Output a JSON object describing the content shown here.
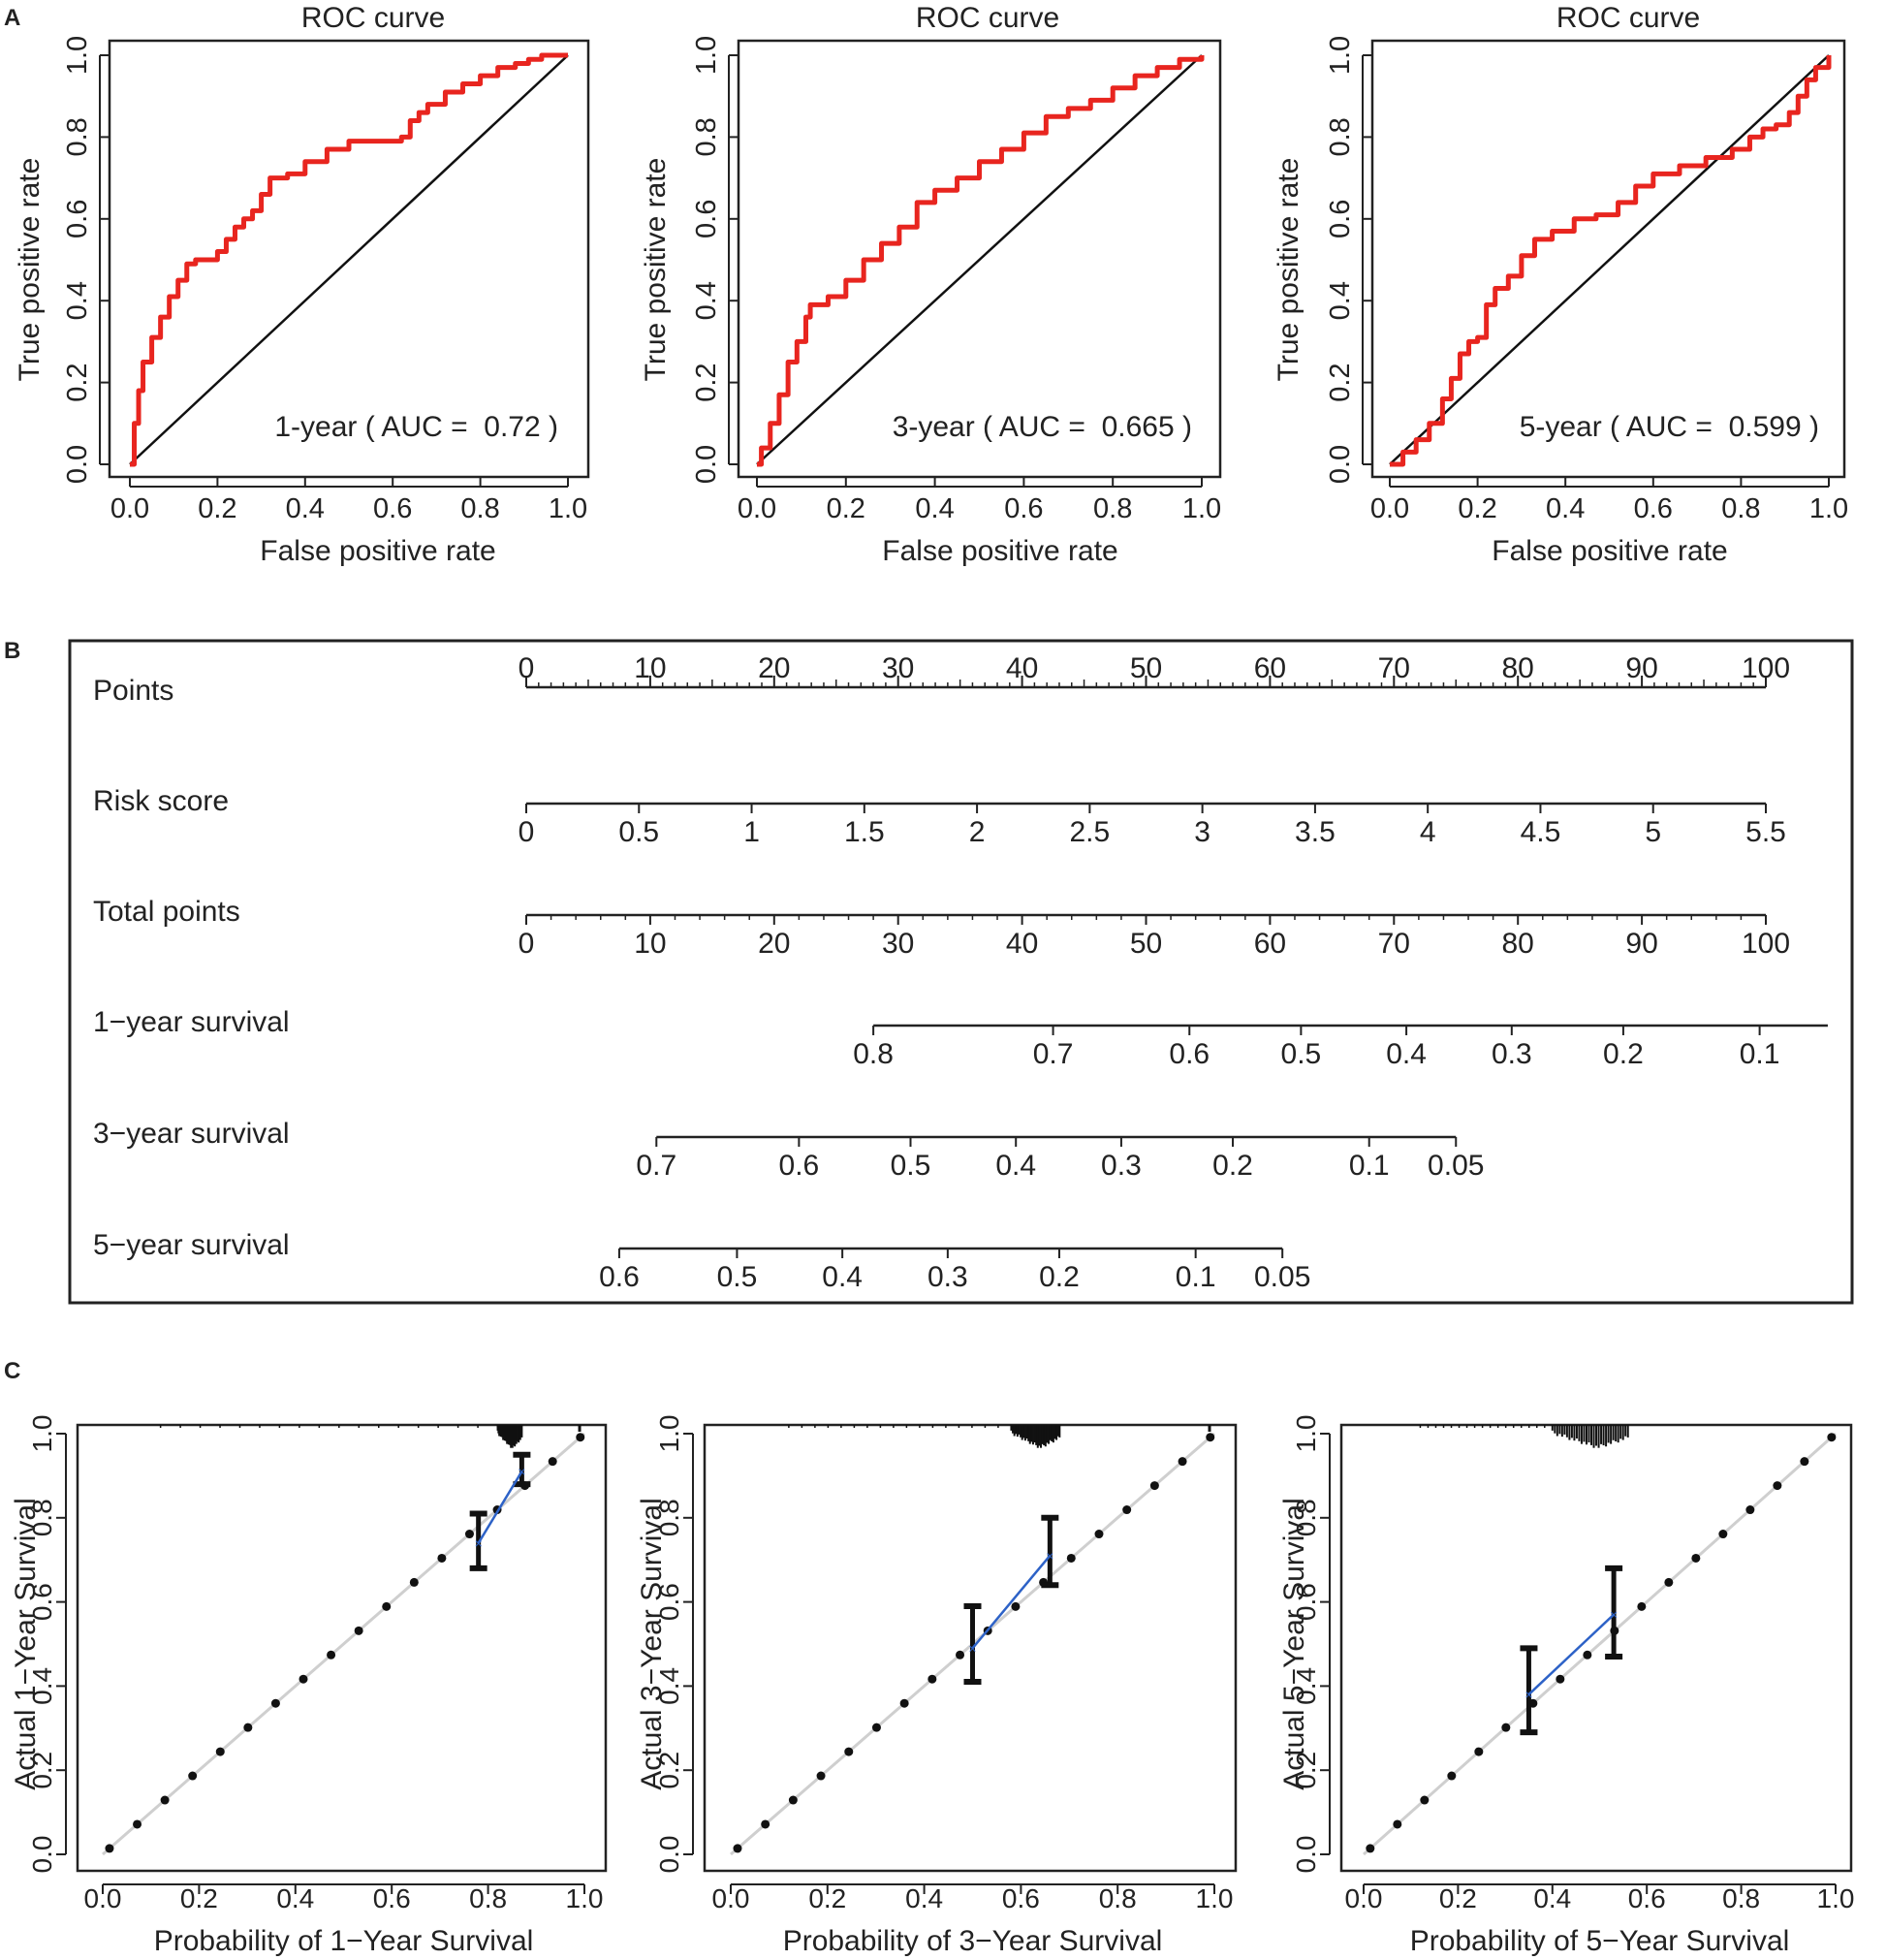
{
  "panels": {
    "A": "A",
    "B": "B",
    "C": "C"
  },
  "chart_data": [
    {
      "type": "line",
      "id": "roc-1",
      "title": "ROC curve",
      "xlabel": "False positive rate",
      "ylabel": "True positive rate",
      "xlim": [
        0,
        1
      ],
      "ylim": [
        0,
        1
      ],
      "ticks": [
        "0.0",
        "0.2",
        "0.4",
        "0.6",
        "0.8",
        "1.0"
      ],
      "annotation": "1-year ( AUC =  0.72 )",
      "auc": 0.72,
      "color": "#e8251f",
      "series": [
        {
          "name": "1-year",
          "x": [
            0,
            0.01,
            0.02,
            0.03,
            0.05,
            0.07,
            0.09,
            0.11,
            0.13,
            0.15,
            0.18,
            0.2,
            0.22,
            0.24,
            0.26,
            0.28,
            0.3,
            0.32,
            0.36,
            0.4,
            0.45,
            0.5,
            0.55,
            0.6,
            0.62,
            0.64,
            0.66,
            0.68,
            0.72,
            0.76,
            0.8,
            0.84,
            0.88,
            0.91,
            0.94,
            0.97,
            1.0
          ],
          "y": [
            0,
            0.1,
            0.18,
            0.25,
            0.31,
            0.36,
            0.41,
            0.45,
            0.49,
            0.5,
            0.5,
            0.52,
            0.55,
            0.58,
            0.6,
            0.62,
            0.66,
            0.7,
            0.71,
            0.74,
            0.77,
            0.79,
            0.79,
            0.79,
            0.8,
            0.84,
            0.86,
            0.88,
            0.91,
            0.93,
            0.95,
            0.97,
            0.98,
            0.99,
            1.0,
            1.0,
            1.0
          ]
        }
      ]
    },
    {
      "type": "line",
      "id": "roc-3",
      "title": "ROC curve",
      "xlabel": "False positive rate",
      "ylabel": "True positive rate",
      "xlim": [
        0,
        1
      ],
      "ylim": [
        0,
        1
      ],
      "ticks": [
        "0.0",
        "0.2",
        "0.4",
        "0.6",
        "0.8",
        "1.0"
      ],
      "annotation": "3-year ( AUC =  0.665 )",
      "auc": 0.665,
      "color": "#e8251f",
      "series": [
        {
          "name": "3-year",
          "x": [
            0,
            0.01,
            0.03,
            0.05,
            0.07,
            0.09,
            0.11,
            0.12,
            0.13,
            0.16,
            0.2,
            0.24,
            0.28,
            0.32,
            0.36,
            0.4,
            0.45,
            0.5,
            0.55,
            0.6,
            0.65,
            0.7,
            0.75,
            0.8,
            0.85,
            0.9,
            0.95,
            1.0
          ],
          "y": [
            0,
            0.04,
            0.1,
            0.17,
            0.25,
            0.3,
            0.36,
            0.39,
            0.39,
            0.41,
            0.45,
            0.5,
            0.54,
            0.58,
            0.64,
            0.67,
            0.7,
            0.74,
            0.77,
            0.81,
            0.85,
            0.87,
            0.89,
            0.92,
            0.95,
            0.97,
            0.99,
            1.0
          ]
        }
      ]
    },
    {
      "type": "line",
      "id": "roc-5",
      "title": "ROC curve",
      "xlabel": "False positive rate",
      "ylabel": "True positive rate",
      "xlim": [
        0,
        1
      ],
      "ylim": [
        0,
        1
      ],
      "ticks": [
        "0.0",
        "0.2",
        "0.4",
        "0.6",
        "0.8",
        "1.0"
      ],
      "annotation": "5-year ( AUC =  0.599 )",
      "auc": 0.599,
      "color": "#e8251f",
      "series": [
        {
          "name": "5-year",
          "x": [
            0,
            0.03,
            0.06,
            0.09,
            0.12,
            0.14,
            0.16,
            0.18,
            0.2,
            0.22,
            0.24,
            0.27,
            0.3,
            0.33,
            0.37,
            0.42,
            0.47,
            0.52,
            0.56,
            0.6,
            0.66,
            0.72,
            0.78,
            0.82,
            0.85,
            0.88,
            0.91,
            0.93,
            0.95,
            0.97,
            1.0
          ],
          "y": [
            0,
            0.03,
            0.06,
            0.1,
            0.16,
            0.21,
            0.27,
            0.3,
            0.31,
            0.39,
            0.43,
            0.46,
            0.51,
            0.55,
            0.57,
            0.6,
            0.61,
            0.64,
            0.68,
            0.71,
            0.73,
            0.75,
            0.77,
            0.8,
            0.82,
            0.83,
            0.86,
            0.9,
            0.94,
            0.97,
            1.0
          ]
        }
      ]
    },
    {
      "type": "nomogram",
      "id": "nomogram",
      "points_scale": {
        "label": "Points",
        "range": [
          0,
          100
        ],
        "ticks": [
          0,
          10,
          20,
          30,
          40,
          50,
          60,
          70,
          80,
          90,
          100
        ]
      },
      "rows": [
        {
          "label": "Risk score",
          "min": 0,
          "max": 5.5,
          "ticks": [
            {
              "label": "0",
              "v": 0
            },
            {
              "label": "0.5",
              "v": 0.5
            },
            {
              "label": "1",
              "v": 1
            },
            {
              "label": "1.5",
              "v": 1.5
            },
            {
              "label": "2",
              "v": 2
            },
            {
              "label": "2.5",
              "v": 2.5
            },
            {
              "label": "3",
              "v": 3
            },
            {
              "label": "3.5",
              "v": 3.5
            },
            {
              "label": "4",
              "v": 4
            },
            {
              "label": "4.5",
              "v": 4.5
            },
            {
              "label": "5",
              "v": 5
            },
            {
              "label": "5.5",
              "v": 5.5
            }
          ]
        },
        {
          "label": "Total points",
          "min": 0,
          "max": 100,
          "ticks": [
            {
              "label": "0",
              "v": 0
            },
            {
              "label": "10",
              "v": 10
            },
            {
              "label": "20",
              "v": 20
            },
            {
              "label": "30",
              "v": 30
            },
            {
              "label": "40",
              "v": 40
            },
            {
              "label": "50",
              "v": 50
            },
            {
              "label": "60",
              "v": 60
            },
            {
              "label": "70",
              "v": 70
            },
            {
              "label": "80",
              "v": 80
            },
            {
              "label": "90",
              "v": 90
            },
            {
              "label": "100",
              "v": 100
            }
          ]
        },
        {
          "label": "1−year survival",
          "line": [
            28,
            105
          ],
          "ticks": [
            {
              "label": "0.8",
              "v": 28
            },
            {
              "label": "0.7",
              "v": 42.5
            },
            {
              "label": "0.6",
              "v": 53.5
            },
            {
              "label": "0.5",
              "v": 62.5
            },
            {
              "label": "0.4",
              "v": 71
            },
            {
              "label": "0.3",
              "v": 79.5
            },
            {
              "label": "0.2",
              "v": 88.5
            },
            {
              "label": "0.1",
              "v": 99.5
            }
          ]
        },
        {
          "label": "3−year survival",
          "line": [
            10.5,
            75
          ],
          "ticks": [
            {
              "label": "0.7",
              "v": 10.5
            },
            {
              "label": "0.6",
              "v": 22
            },
            {
              "label": "0.5",
              "v": 31
            },
            {
              "label": "0.4",
              "v": 39.5
            },
            {
              "label": "0.3",
              "v": 48
            },
            {
              "label": "0.2",
              "v": 57
            },
            {
              "label": "0.1",
              "v": 68
            },
            {
              "label": "0.05",
              "v": 75
            }
          ]
        },
        {
          "label": "5−year survival",
          "line": [
            7.5,
            61
          ],
          "ticks": [
            {
              "label": "0.6",
              "v": 7.5
            },
            {
              "label": "0.5",
              "v": 17
            },
            {
              "label": "0.4",
              "v": 25.5
            },
            {
              "label": "0.3",
              "v": 34
            },
            {
              "label": "0.2",
              "v": 43
            },
            {
              "label": "0.1",
              "v": 54
            },
            {
              "label": "0.05",
              "v": 61
            }
          ]
        }
      ]
    },
    {
      "type": "scatter",
      "id": "cal-1",
      "xlabel": "Probability of 1−Year Survival",
      "ylabel": "Actual 1−Year Survival",
      "xlim": [
        0,
        1
      ],
      "ylim": [
        0,
        1
      ],
      "ticks": [
        "0.0",
        "0.2",
        "0.4",
        "0.6",
        "0.8",
        "1.0"
      ],
      "points": [
        {
          "x": 0.78,
          "y": 0.74,
          "lo": 0.68,
          "hi": 0.81
        },
        {
          "x": 0.87,
          "y": 0.91,
          "lo": 0.88,
          "hi": 0.95
        }
      ],
      "line_color": "#2d62c7",
      "rug_min": 0.82,
      "rug_max": 0.87,
      "edge_rug": 0.99
    },
    {
      "type": "scatter",
      "id": "cal-3",
      "xlabel": "Probability of 3−Year Survival",
      "ylabel": "Actual 3−Year Survival",
      "xlim": [
        0,
        1
      ],
      "ylim": [
        0,
        1
      ],
      "ticks": [
        "0.0",
        "0.2",
        "0.4",
        "0.6",
        "0.8",
        "1.0"
      ],
      "points": [
        {
          "x": 0.5,
          "y": 0.49,
          "lo": 0.41,
          "hi": 0.59
        },
        {
          "x": 0.66,
          "y": 0.71,
          "lo": 0.64,
          "hi": 0.8
        }
      ],
      "line_color": "#2d62c7",
      "rug_min": 0.58,
      "rug_max": 0.68,
      "edge_rug": 0.99
    },
    {
      "type": "scatter",
      "id": "cal-5",
      "xlabel": "Probability of 5−Year Survival",
      "ylabel": "Actual 5−Year Survival",
      "xlim": [
        0,
        1
      ],
      "ylim": [
        0,
        1
      ],
      "ticks": [
        "0.0",
        "0.2",
        "0.4",
        "0.6",
        "0.8",
        "1.0"
      ],
      "points": [
        {
          "x": 0.35,
          "y": 0.38,
          "lo": 0.29,
          "hi": 0.49
        },
        {
          "x": 0.53,
          "y": 0.57,
          "lo": 0.47,
          "hi": 0.68
        }
      ],
      "line_color": "#2d62c7",
      "rug_min": 0.4,
      "rug_max": 0.56,
      "edge_rug": null
    }
  ]
}
